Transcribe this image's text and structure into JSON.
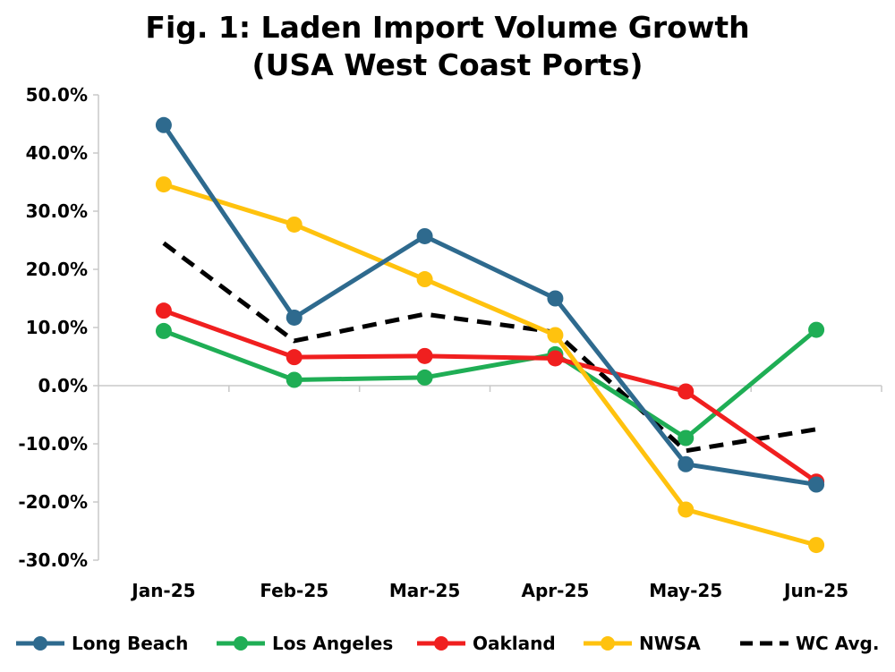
{
  "chart_data": {
    "type": "line",
    "title": "Fig. 1: Laden Import Volume Growth",
    "subtitle": "(USA West Coast Ports)",
    "categories": [
      "Jan-25",
      "Feb-25",
      "Mar-25",
      "Apr-25",
      "May-25",
      "Jun-25"
    ],
    "ylim": [
      -30,
      50
    ],
    "yticks": [
      50,
      40,
      30,
      20,
      10,
      0,
      -10,
      -20,
      -30
    ],
    "ytick_labels": [
      "50.0%",
      "40.0%",
      "30.0%",
      "20.0%",
      "10.0%",
      "0.0%",
      "-10.0%",
      "-20.0%",
      "-30.0%"
    ],
    "legend_position": "bottom",
    "grid": false,
    "series": [
      {
        "name": "Long Beach",
        "color": "#2E6A8E",
        "style": "solid",
        "markers": true,
        "values": [
          44.8,
          11.7,
          25.7,
          15.0,
          -13.5,
          -17.0
        ]
      },
      {
        "name": "Los Angeles",
        "color": "#1FAE55",
        "style": "solid",
        "markers": true,
        "values": [
          9.4,
          1.0,
          1.4,
          5.4,
          -9.0,
          9.6
        ]
      },
      {
        "name": "Oakland",
        "color": "#F01F1F",
        "style": "solid",
        "markers": true,
        "values": [
          12.9,
          4.9,
          5.1,
          4.7,
          -1.0,
          -16.5
        ]
      },
      {
        "name": "NWSA",
        "color": "#FFC20E",
        "style": "solid",
        "markers": true,
        "values": [
          34.6,
          27.7,
          18.3,
          8.7,
          -21.3,
          -27.4
        ]
      },
      {
        "name": "WC Avg.",
        "color": "#000000",
        "style": "dashed",
        "markers": false,
        "values": [
          24.5,
          7.7,
          12.3,
          9.2,
          -11.2,
          -7.5
        ]
      }
    ]
  }
}
